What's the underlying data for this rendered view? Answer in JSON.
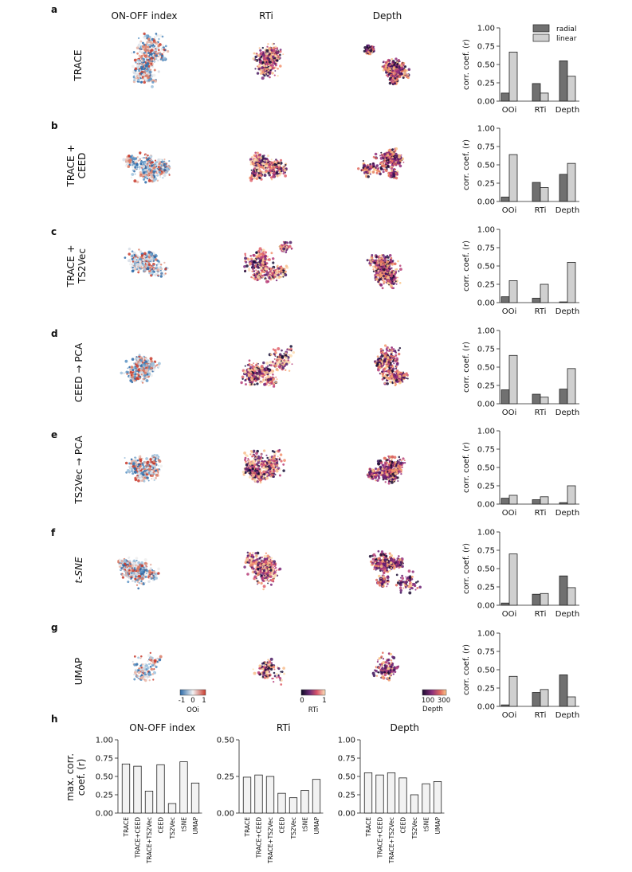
{
  "figure": {
    "column_titles": [
      "ON-OFF index",
      "RTi",
      "Depth"
    ],
    "panels": [
      {
        "letter": "a",
        "row_label": [
          "TRACE"
        ]
      },
      {
        "letter": "b",
        "row_label": [
          "TRACE +",
          "CEED"
        ]
      },
      {
        "letter": "c",
        "row_label": [
          "TRACE +",
          "TS2Vec"
        ]
      },
      {
        "letter": "d",
        "row_label": [
          "CEED → PCA"
        ]
      },
      {
        "letter": "e",
        "row_label": [
          "TS2Vec → PCA"
        ]
      },
      {
        "letter": "f",
        "row_label": [
          "t-SNE"
        ]
      },
      {
        "letter": "g",
        "row_label": [
          "UMAP"
        ]
      }
    ],
    "panel_h_letter": "h",
    "colorbars": [
      {
        "ticks": [
          "-1",
          "0",
          "1"
        ],
        "label": "OOi"
      },
      {
        "ticks": [
          "0",
          "1"
        ],
        "label": "RTi"
      },
      {
        "ticks": [
          "100",
          "300"
        ],
        "label": "Depth"
      }
    ],
    "legend": [
      {
        "label": "radial",
        "color": "#707070"
      },
      {
        "label": "linear",
        "color": "#d0d0d0"
      }
    ]
  },
  "chart_data": [
    {
      "type": "bar",
      "panel": "a",
      "categories": [
        "OOi",
        "RTi",
        "Depth"
      ],
      "series": [
        {
          "name": "radial",
          "values": [
            0.11,
            0.24,
            0.55
          ]
        },
        {
          "name": "linear",
          "values": [
            0.67,
            0.11,
            0.34
          ]
        }
      ],
      "ylabel": "corr. coef. (r)",
      "ylim": [
        0,
        1
      ],
      "yticks": [
        "0.00",
        "0.25",
        "0.50",
        "0.75",
        "1.00"
      ]
    },
    {
      "type": "bar",
      "panel": "b",
      "categories": [
        "OOi",
        "RTi",
        "Depth"
      ],
      "series": [
        {
          "name": "radial",
          "values": [
            0.06,
            0.26,
            0.37
          ]
        },
        {
          "name": "linear",
          "values": [
            0.64,
            0.19,
            0.52
          ]
        }
      ],
      "ylabel": "corr. coef. (r)",
      "ylim": [
        0,
        1
      ],
      "yticks": [
        "0.00",
        "0.25",
        "0.50",
        "0.75",
        "1.00"
      ]
    },
    {
      "type": "bar",
      "panel": "c",
      "categories": [
        "OOi",
        "RTi",
        "Depth"
      ],
      "series": [
        {
          "name": "radial",
          "values": [
            0.08,
            0.06,
            0.01
          ]
        },
        {
          "name": "linear",
          "values": [
            0.3,
            0.25,
            0.55
          ]
        }
      ],
      "ylabel": "corr. coef. (r)",
      "ylim": [
        0,
        1
      ],
      "yticks": [
        "0.00",
        "0.25",
        "0.50",
        "0.75",
        "1.00"
      ]
    },
    {
      "type": "bar",
      "panel": "d",
      "categories": [
        "OOi",
        "RTi",
        "Depth"
      ],
      "series": [
        {
          "name": "radial",
          "values": [
            0.19,
            0.13,
            0.2
          ]
        },
        {
          "name": "linear",
          "values": [
            0.66,
            0.09,
            0.48
          ]
        }
      ],
      "ylabel": "corr. coef. (r)",
      "ylim": [
        0,
        1
      ],
      "yticks": [
        "0.00",
        "0.25",
        "0.50",
        "0.75",
        "1.00"
      ]
    },
    {
      "type": "bar",
      "panel": "e",
      "categories": [
        "OOi",
        "RTi",
        "Depth"
      ],
      "series": [
        {
          "name": "radial",
          "values": [
            0.08,
            0.06,
            0.02
          ]
        },
        {
          "name": "linear",
          "values": [
            0.12,
            0.1,
            0.25
          ]
        }
      ],
      "ylabel": "corr. coef. (r)",
      "ylim": [
        0,
        1
      ],
      "yticks": [
        "0.00",
        "0.25",
        "0.50",
        "0.75",
        "1.00"
      ]
    },
    {
      "type": "bar",
      "panel": "f",
      "categories": [
        "OOi",
        "RTi",
        "Depth"
      ],
      "series": [
        {
          "name": "radial",
          "values": [
            0.03,
            0.15,
            0.4
          ]
        },
        {
          "name": "linear",
          "values": [
            0.7,
            0.16,
            0.24
          ]
        }
      ],
      "ylabel": "corr. coef. (r)",
      "ylim": [
        0,
        1
      ],
      "yticks": [
        "0.00",
        "0.25",
        "0.50",
        "0.75",
        "1.00"
      ]
    },
    {
      "type": "bar",
      "panel": "g",
      "categories": [
        "OOi",
        "RTi",
        "Depth"
      ],
      "series": [
        {
          "name": "radial",
          "values": [
            0.02,
            0.19,
            0.43
          ]
        },
        {
          "name": "linear",
          "values": [
            0.41,
            0.23,
            0.13
          ]
        }
      ],
      "ylabel": "corr. coef. (r)",
      "ylim": [
        0,
        1
      ],
      "yticks": [
        "0.00",
        "0.25",
        "0.50",
        "0.75",
        "1.00"
      ]
    },
    {
      "type": "bar",
      "panel": "h",
      "title": "ON-OFF index",
      "categories": [
        "TRACE",
        "TRACE+CEED",
        "TRACE+TS2Vec",
        "CEED",
        "TS2Vec",
        "tSNE",
        "UMAP"
      ],
      "values": [
        0.67,
        0.64,
        0.3,
        0.66,
        0.13,
        0.7,
        0.41
      ],
      "ylabel": "max. corr. coef. (r)",
      "ylim": [
        0,
        1
      ],
      "yticks": [
        "0.00",
        "0.25",
        "0.50",
        "0.75",
        "1.00"
      ]
    },
    {
      "type": "bar",
      "panel": "h",
      "title": "RTi",
      "categories": [
        "TRACE",
        "TRACE+CEED",
        "TRACE+TS2Vec",
        "CEED",
        "TS2Vec",
        "tSNE",
        "UMAP"
      ],
      "values": [
        0.245,
        0.26,
        0.25,
        0.135,
        0.105,
        0.155,
        0.23
      ],
      "ylabel": "",
      "ylim": [
        0,
        0.5
      ],
      "yticks": [
        "0.00",
        "0.25",
        "0.50"
      ]
    },
    {
      "type": "bar",
      "panel": "h",
      "title": "Depth",
      "categories": [
        "TRACE",
        "TRACE+CEED",
        "TRACE+TS2Vec",
        "CEED",
        "TS2Vec",
        "tSNE",
        "UMAP"
      ],
      "values": [
        0.55,
        0.52,
        0.55,
        0.48,
        0.25,
        0.4,
        0.43
      ],
      "ylabel": "",
      "ylim": [
        0,
        1
      ],
      "yticks": [
        "0.00",
        "0.25",
        "0.50",
        "0.75",
        "1.00"
      ]
    }
  ]
}
